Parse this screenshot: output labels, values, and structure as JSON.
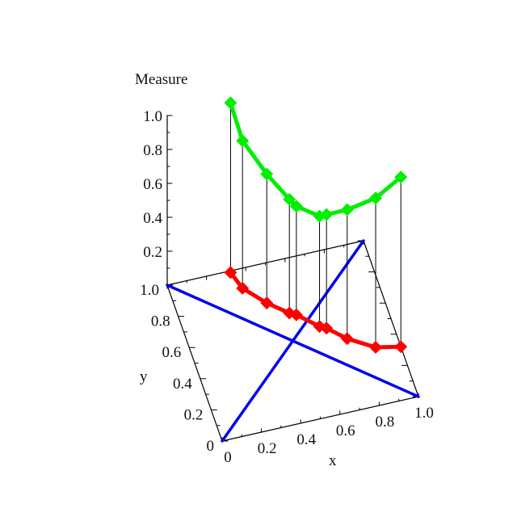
{
  "chart_data": {
    "type": "3d-scatter-line",
    "title": "",
    "xlabel": "x",
    "ylabel": "y",
    "zlabel": "Measure",
    "xlim": [
      0,
      1
    ],
    "ylim": [
      0,
      1
    ],
    "zlim": [
      0,
      1
    ],
    "x_ticks": [
      "0",
      "0.2",
      "0.4",
      "0.6",
      "0.8",
      "1.0"
    ],
    "y_ticks": [
      "0",
      "0.2",
      "0.4",
      "0.6",
      "0.8",
      "1.0"
    ],
    "z_ticks": [
      "0.2",
      "0.4",
      "0.6",
      "0.8",
      "1.0"
    ],
    "points": {
      "x": [
        0.32,
        0.35,
        0.44,
        0.53,
        0.56,
        0.65,
        0.68,
        0.76,
        0.88,
        1.0
      ],
      "y": [
        0.99,
        0.88,
        0.76,
        0.67,
        0.65,
        0.55,
        0.53,
        0.44,
        0.35,
        0.32
      ],
      "z": [
        1.0,
        0.87,
        0.76,
        0.67,
        0.64,
        0.65,
        0.67,
        0.76,
        0.88,
        1.0
      ]
    },
    "diagonals": [
      {
        "from": [
          0,
          0
        ],
        "to": [
          1,
          1
        ]
      },
      {
        "from": [
          0,
          1
        ],
        "to": [
          1,
          0
        ]
      }
    ],
    "colors": {
      "measure_curve": "#00ee00",
      "base_curve": "#ff0000",
      "diagonals": "#0000ee",
      "stems": "#000000",
      "frame": "#000000"
    }
  }
}
